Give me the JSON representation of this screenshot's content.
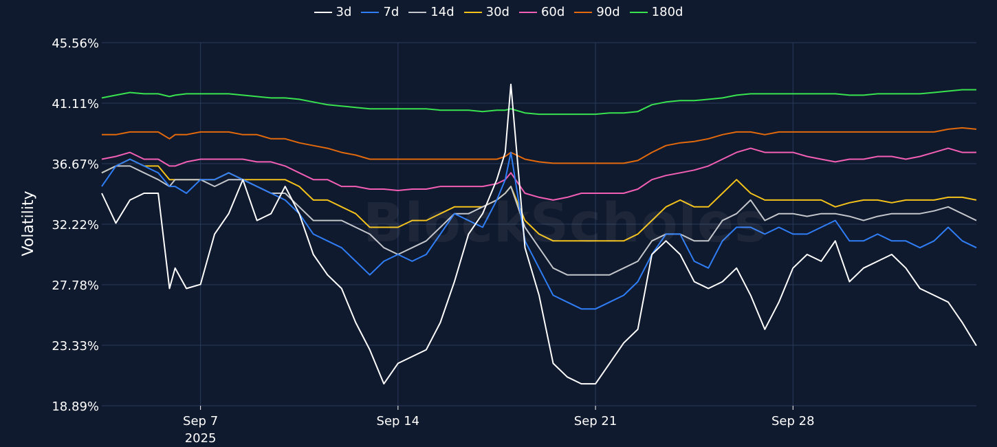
{
  "watermark": "BlockScholes",
  "legend": [
    {
      "label": "3d",
      "color": "#ffffff"
    },
    {
      "label": "7d",
      "color": "#2f7ef7"
    },
    {
      "label": "14d",
      "color": "#c4c7cc"
    },
    {
      "label": "30d",
      "color": "#f4c21b"
    },
    {
      "label": "60d",
      "color": "#f35fb4"
    },
    {
      "label": "90d",
      "color": "#e2690c"
    },
    {
      "label": "180d",
      "color": "#38e34f"
    }
  ],
  "chart_data": {
    "type": "line",
    "ylabel": "Volatility",
    "ylim": [
      18.89,
      45.56
    ],
    "y_ticks": [
      "45.56%",
      "41.11%",
      "36.67%",
      "32.22%",
      "27.78%",
      "23.33%",
      "18.89%"
    ],
    "xlim": [
      3.5,
      34.5
    ],
    "x_ticks": [
      {
        "day": 7,
        "label": "Sep 7",
        "sublabel": "2025"
      },
      {
        "day": 14,
        "label": "Sep 14",
        "sublabel": ""
      },
      {
        "day": 21,
        "label": "Sep 21",
        "sublabel": ""
      },
      {
        "day": 28,
        "label": "Sep 28",
        "sublabel": ""
      }
    ],
    "x": [
      3.5,
      4,
      4.5,
      5,
      5.5,
      5.9,
      6.1,
      6.5,
      7,
      7.5,
      8,
      8.5,
      9,
      9.5,
      10,
      10.5,
      11,
      11.5,
      12,
      12.5,
      13,
      13.5,
      14,
      14.5,
      15,
      15.5,
      16,
      16.5,
      17,
      17.5,
      17.8,
      18,
      18.5,
      19,
      19.5,
      20,
      20.5,
      21,
      21.5,
      22,
      22.5,
      23,
      23.5,
      24,
      24.5,
      25,
      25.5,
      26,
      26.5,
      27,
      27.5,
      28,
      28.5,
      29,
      29.5,
      30,
      30.5,
      31,
      31.5,
      32,
      32.5,
      33,
      33.5,
      34,
      34.5
    ],
    "series": [
      {
        "name": "3d",
        "color": "#ffffff",
        "values": [
          34.5,
          32.3,
          34.0,
          34.5,
          34.5,
          27.5,
          29.0,
          27.5,
          27.8,
          31.5,
          33.0,
          35.5,
          32.5,
          33.0,
          35.0,
          33.0,
          30.0,
          28.5,
          27.5,
          25.0,
          23.0,
          20.5,
          22.0,
          22.5,
          23.0,
          25.0,
          28.0,
          31.5,
          33.0,
          35.5,
          37.5,
          42.5,
          30.5,
          27.0,
          22.0,
          21.0,
          20.5,
          20.5,
          22.0,
          23.5,
          24.5,
          30.0,
          31.0,
          30.0,
          28.0,
          27.5,
          28.0,
          29.0,
          27.0,
          24.5,
          26.5,
          29.0,
          30.0,
          29.5,
          31.0,
          28.0,
          29.0,
          29.5,
          30.0,
          29.0,
          27.5,
          27.0,
          26.5,
          25.0,
          23.3
        ]
      },
      {
        "name": "7d",
        "color": "#2f7ef7",
        "values": [
          35.0,
          36.5,
          37.0,
          36.5,
          36.0,
          35.0,
          35.0,
          34.5,
          35.5,
          35.5,
          36.0,
          35.5,
          35.0,
          34.5,
          34.0,
          33.0,
          31.5,
          31.0,
          30.5,
          29.5,
          28.5,
          29.5,
          30.0,
          29.5,
          30.0,
          31.5,
          33.0,
          32.5,
          32.0,
          34.0,
          35.5,
          37.5,
          31.0,
          29.0,
          27.0,
          26.5,
          26.0,
          26.0,
          26.5,
          27.0,
          28.0,
          30.0,
          31.5,
          31.5,
          29.5,
          29.0,
          31.0,
          32.0,
          32.0,
          31.5,
          32.0,
          31.5,
          31.5,
          32.0,
          32.5,
          31.0,
          31.0,
          31.5,
          31.0,
          31.0,
          30.5,
          31.0,
          32.0,
          31.0,
          30.5
        ]
      },
      {
        "name": "14d",
        "color": "#c4c7cc",
        "values": [
          36.0,
          36.5,
          36.5,
          36.0,
          35.5,
          35.0,
          35.5,
          35.5,
          35.5,
          35.0,
          35.5,
          35.5,
          35.0,
          34.5,
          34.5,
          33.5,
          32.5,
          32.5,
          32.5,
          32.0,
          31.5,
          30.5,
          30.0,
          30.5,
          31.0,
          32.0,
          33.0,
          33.0,
          33.5,
          34.0,
          34.5,
          35.0,
          32.0,
          30.5,
          29.0,
          28.5,
          28.5,
          28.5,
          28.5,
          29.0,
          29.5,
          31.0,
          31.5,
          31.5,
          31.0,
          31.0,
          32.5,
          33.0,
          34.0,
          32.5,
          33.0,
          33.0,
          32.8,
          33.0,
          33.0,
          32.8,
          32.5,
          32.8,
          33.0,
          33.0,
          33.0,
          33.2,
          33.5,
          33.0,
          32.5
        ]
      },
      {
        "name": "30d",
        "color": "#f4c21b",
        "values": [
          36.0,
          36.5,
          37.0,
          36.5,
          36.5,
          35.5,
          35.5,
          35.5,
          35.5,
          35.5,
          36.0,
          35.5,
          35.5,
          35.5,
          35.5,
          35.0,
          34.0,
          34.0,
          33.5,
          33.0,
          32.0,
          32.0,
          32.0,
          32.5,
          32.5,
          33.0,
          33.5,
          33.5,
          33.5,
          34.0,
          34.5,
          35.0,
          32.5,
          31.5,
          31.0,
          31.0,
          31.0,
          31.0,
          31.0,
          31.0,
          31.5,
          32.5,
          33.5,
          34.0,
          33.5,
          33.5,
          34.5,
          35.5,
          34.5,
          34.0,
          34.0,
          34.0,
          34.0,
          34.0,
          33.5,
          33.8,
          34.0,
          34.0,
          33.8,
          34.0,
          34.0,
          34.0,
          34.2,
          34.2,
          34.0
        ]
      },
      {
        "name": "60d",
        "color": "#f35fb4",
        "values": [
          37.0,
          37.2,
          37.5,
          37.0,
          37.0,
          36.5,
          36.5,
          36.8,
          37.0,
          37.0,
          37.0,
          37.0,
          36.8,
          36.8,
          36.5,
          36.0,
          35.5,
          35.5,
          35.0,
          35.0,
          34.8,
          34.8,
          34.7,
          34.8,
          34.8,
          35.0,
          35.0,
          35.0,
          35.0,
          35.2,
          35.5,
          36.0,
          34.5,
          34.2,
          34.0,
          34.2,
          34.5,
          34.5,
          34.5,
          34.5,
          34.8,
          35.5,
          35.8,
          36.0,
          36.2,
          36.5,
          37.0,
          37.5,
          37.8,
          37.5,
          37.5,
          37.5,
          37.2,
          37.0,
          36.8,
          37.0,
          37.0,
          37.2,
          37.2,
          37.0,
          37.2,
          37.5,
          37.8,
          37.5,
          37.5
        ]
      },
      {
        "name": "90d",
        "color": "#e2690c",
        "values": [
          38.8,
          38.8,
          39.0,
          39.0,
          39.0,
          38.5,
          38.8,
          38.8,
          39.0,
          39.0,
          39.0,
          38.8,
          38.8,
          38.5,
          38.5,
          38.2,
          38.0,
          37.8,
          37.5,
          37.3,
          37.0,
          37.0,
          37.0,
          37.0,
          37.0,
          37.0,
          37.0,
          37.0,
          37.0,
          37.0,
          37.2,
          37.5,
          37.0,
          36.8,
          36.7,
          36.7,
          36.7,
          36.7,
          36.7,
          36.7,
          36.9,
          37.5,
          38.0,
          38.2,
          38.3,
          38.5,
          38.8,
          39.0,
          39.0,
          38.8,
          39.0,
          39.0,
          39.0,
          39.0,
          39.0,
          39.0,
          39.0,
          39.0,
          39.0,
          39.0,
          39.0,
          39.0,
          39.2,
          39.3,
          39.2
        ]
      },
      {
        "name": "180d",
        "color": "#38e34f",
        "values": [
          41.5,
          41.7,
          41.9,
          41.8,
          41.8,
          41.6,
          41.7,
          41.8,
          41.8,
          41.8,
          41.8,
          41.7,
          41.6,
          41.5,
          41.5,
          41.4,
          41.2,
          41.0,
          40.9,
          40.8,
          40.7,
          40.7,
          40.7,
          40.7,
          40.7,
          40.6,
          40.6,
          40.6,
          40.5,
          40.6,
          40.6,
          40.7,
          40.4,
          40.3,
          40.3,
          40.3,
          40.3,
          40.3,
          40.4,
          40.4,
          40.5,
          41.0,
          41.2,
          41.3,
          41.3,
          41.4,
          41.5,
          41.7,
          41.8,
          41.8,
          41.8,
          41.8,
          41.8,
          41.8,
          41.8,
          41.7,
          41.7,
          41.8,
          41.8,
          41.8,
          41.8,
          41.9,
          42.0,
          42.1,
          42.1
        ]
      }
    ]
  }
}
